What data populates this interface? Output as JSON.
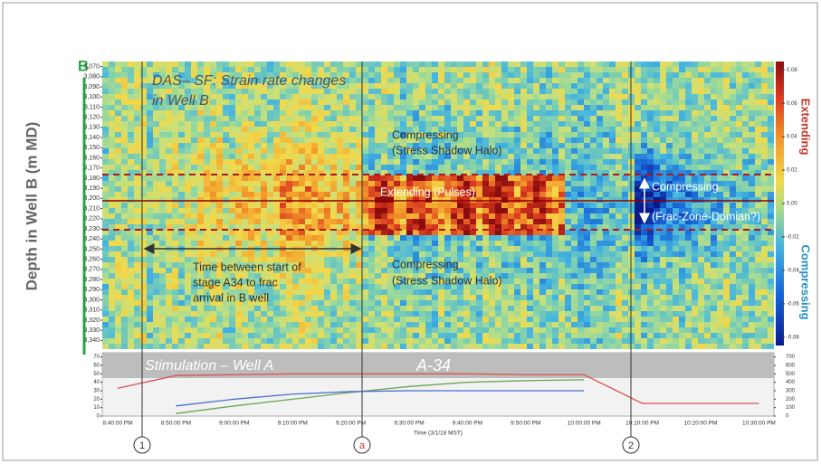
{
  "chart_data": [
    {
      "type": "heatmap",
      "panel_label": "B",
      "title_lines": [
        "DAS– SF: Strain rate changes",
        "in Well B"
      ],
      "ylabel": "Depth in Well B (m MD)",
      "ylim": [
        3345,
        3065
      ],
      "yticks": [
        {
          "value": 3070,
          "label": "3,070"
        },
        {
          "value": 3080,
          "label": "3,080"
        },
        {
          "value": 3090,
          "label": "3,090"
        },
        {
          "value": 3100,
          "label": "3,100"
        },
        {
          "value": 3110,
          "label": "3,110"
        },
        {
          "value": 3120,
          "label": "3,120"
        },
        {
          "value": 3130,
          "label": "3,130"
        },
        {
          "value": 3140,
          "label": "3,140"
        },
        {
          "value": 3150,
          "label": "3,150"
        },
        {
          "value": 3160,
          "label": "3,160"
        },
        {
          "value": 3170,
          "label": "3,170"
        },
        {
          "value": 3180,
          "label": "3,180"
        },
        {
          "value": 3190,
          "label": "3,190"
        },
        {
          "value": 3200,
          "label": "3,200"
        },
        {
          "value": 3210,
          "label": "3,210"
        },
        {
          "value": 3220,
          "label": "3,220"
        },
        {
          "value": 3230,
          "label": "3,230"
        },
        {
          "value": 3240,
          "label": "3,240"
        },
        {
          "value": 3250,
          "label": "3,250"
        },
        {
          "value": 3260,
          "label": "3,260"
        },
        {
          "value": 3270,
          "label": "3,270"
        },
        {
          "value": 3280,
          "label": "3,280"
        },
        {
          "value": 3290,
          "label": "3,290"
        },
        {
          "value": 3300,
          "label": "3,300"
        },
        {
          "value": 3310,
          "label": "3,310"
        },
        {
          "value": 3320,
          "label": "3,320"
        },
        {
          "value": 3330,
          "label": "3,330"
        },
        {
          "value": 3340,
          "label": "3,340"
        }
      ],
      "colorbar": {
        "zlim": [
          -0.085,
          0.085
        ],
        "ticks": [
          0.08,
          0.06,
          0.04,
          0.02,
          {
            "value": 0,
            "label": "0.00"
          },
          -0.02,
          -0.04,
          -0.06,
          -0.08
        ],
        "top_label": "Extending",
        "bottom_label": "Compressing"
      },
      "annotations": [
        "Compressing",
        "(Stress Shadow Halo)",
        "Extending (Pulses)",
        "Compressing",
        "(Frac-Zone-Domian?)",
        "Time between start of",
        "stage A34 to frac",
        "arrival in B well",
        "Compressing",
        "(Stress Shadow Halo)"
      ]
    },
    {
      "type": "line",
      "title": "Stimulation – Well A",
      "subtitle": "A-34",
      "xlabel": "Time (3/1/18 MST)",
      "categories": [
        "8:40:00 PM",
        "8:50:00 PM",
        "9:00:00 PM",
        "9:10:00 PM",
        "9:20:00 PM",
        "9:30:00 PM",
        "9:40:00 PM",
        "9:50:00 PM",
        "10:00:00 PM",
        "10:10:00 PM",
        "10:20:00 PM",
        "10:30:00 PM"
      ],
      "series": [
        {
          "color": "#d9534f",
          "values": [
            33,
            48,
            49,
            50,
            50,
            50,
            50,
            49,
            49,
            15,
            15,
            15
          ]
        },
        {
          "color": "#6aa84f",
          "values": [
            null,
            3,
            12,
            20,
            28,
            35,
            40,
            42,
            43,
            null,
            null,
            null
          ]
        },
        {
          "color": "#4a6fd1",
          "values": [
            null,
            12,
            20,
            26,
            29,
            30,
            30,
            30,
            30,
            null,
            null,
            null
          ]
        }
      ],
      "ylim": [
        0,
        75
      ],
      "yticks": [
        0,
        10,
        20,
        30,
        40,
        50,
        60,
        70
      ],
      "y2lim": [
        0,
        750
      ],
      "y2ticks": [
        0,
        100,
        200,
        300,
        400,
        500,
        600,
        700
      ],
      "event_markers": [
        "1",
        "a",
        "2"
      ]
    }
  ]
}
